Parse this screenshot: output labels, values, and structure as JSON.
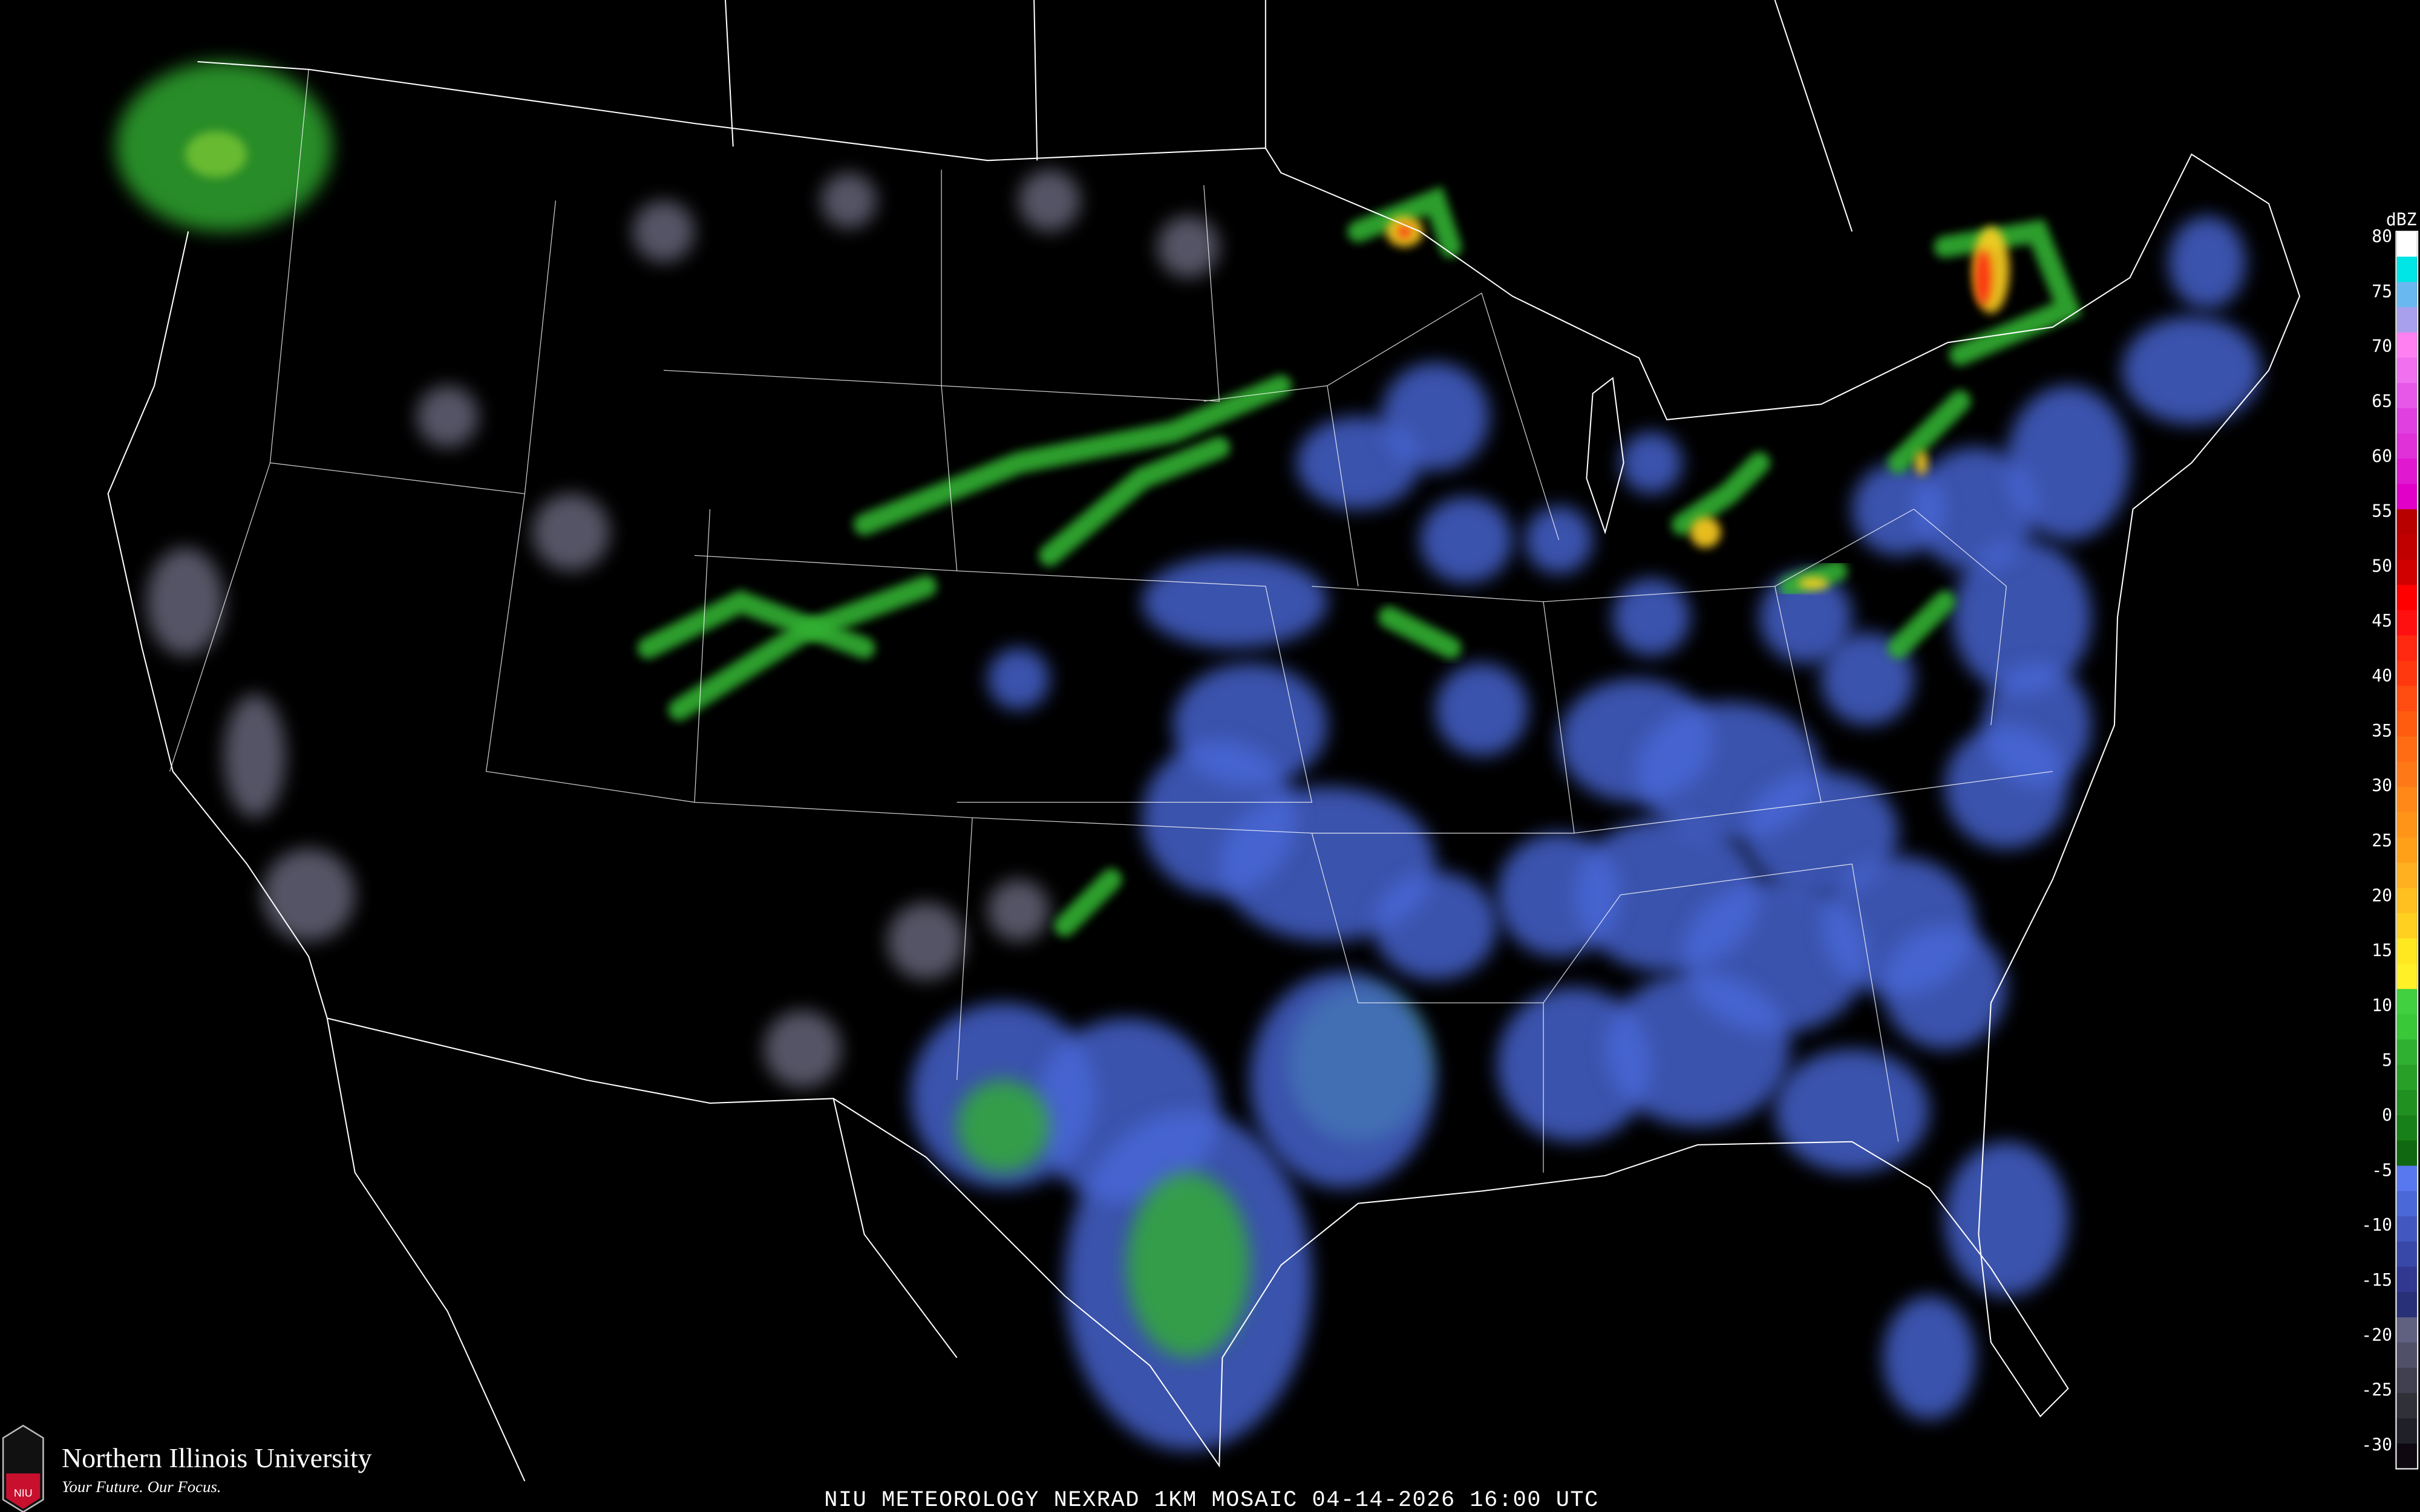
{
  "title": "NIU METEOROLOGY NEXRAD 1KM MOSAIC  04-14-2026 16:00 UTC",
  "logo": {
    "name": "Northern Illinois University",
    "tagline": "Your Future. Our Focus.",
    "shield_text": "NIU",
    "shield_color": "#c8102e"
  },
  "legend": {
    "unit": "dBZ",
    "ticks": [
      "80",
      "75",
      "70",
      "65",
      "60",
      "55",
      "50",
      "45",
      "40",
      "35",
      "30",
      "25",
      "20",
      "15",
      "10",
      "5",
      "0",
      "-5",
      "-10",
      "-15",
      "-20",
      "-25",
      "-30"
    ],
    "colors": [
      "#ffffff",
      "#00e5e5",
      "#6ab8f0",
      "#a8a0ec",
      "#ff80f0",
      "#f070f0",
      "#e858e8",
      "#e040e0",
      "#e030d8",
      "#e018d0",
      "#e000c8",
      "#b80000",
      "#c00000",
      "#d00000",
      "#ff0000",
      "#ff1010",
      "#ff2810",
      "#ff3810",
      "#ff4c10",
      "#ff5c10",
      "#ff6c14",
      "#ff7818",
      "#ff8818",
      "#ff9418",
      "#ffa018",
      "#ffb020",
      "#ffc020",
      "#ffd020",
      "#ffe820",
      "#fff028",
      "#40d040",
      "#38c838",
      "#30b030",
      "#28a028",
      "#209020",
      "#188018",
      "#106810",
      "#5878f0",
      "#4a68d8",
      "#4258c0",
      "#3848a8",
      "#303890",
      "#283078",
      "#606080",
      "#505068",
      "#404050",
      "#303038",
      "#202028",
      "#100810"
    ]
  },
  "colors": {
    "background": "#000000",
    "boundaries": "#ffffff",
    "roads": "#8b4513",
    "light_echo": "#4a68d8",
    "moderate_echo": "#30b030",
    "heavy_echo": "#ffd020",
    "intense_echo": "#ff2810"
  }
}
